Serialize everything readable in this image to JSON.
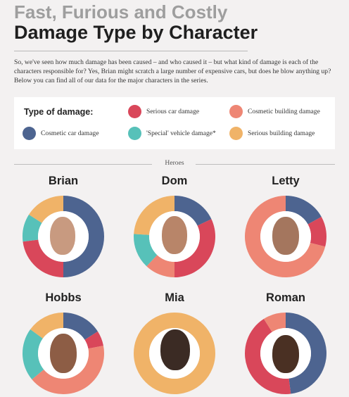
{
  "header": {
    "title_line1": "Fast, Furious and Costly",
    "title_line2": "Damage Type by Character"
  },
  "intro": "So, we've seen how much damage has been caused – and who caused it – but what kind of damage is each of the characters responsible for? Yes, Brian might scratch a large number of expensive cars, but does he blow anything up? Below you can find all of our data for the major characters in the series.",
  "legend": {
    "heading": "Type of damage:",
    "items": [
      {
        "label": "Serious car damage",
        "color": "#d9475a"
      },
      {
        "label": "Cosmetic building damage",
        "color": "#ee8674"
      },
      {
        "label": "Cosmetic car damage",
        "color": "#4d6490"
      },
      {
        "label": "'Special' vehicle damage*",
        "color": "#57c1b9"
      },
      {
        "label": "Serious building damage",
        "color": "#f0b368"
      }
    ]
  },
  "section_label": "Heroes",
  "chart_data": {
    "type": "pie",
    "variant": "donut",
    "series_order": [
      "Cosmetic car damage",
      "Serious car damage",
      "Cosmetic building damage",
      "'Special' vehicle damage*",
      "Serious building damage"
    ],
    "colors": [
      "#4d6490",
      "#d9475a",
      "#ee8674",
      "#57c1b9",
      "#f0b368"
    ],
    "units": "share of damage (%)",
    "charts": [
      {
        "name": "Brian",
        "values": [
          50,
          23,
          0,
          11,
          16
        ]
      },
      {
        "name": "Dom",
        "values": [
          18,
          32,
          12,
          14,
          24
        ]
      },
      {
        "name": "Letty",
        "values": [
          17,
          12,
          71,
          0,
          0
        ]
      },
      {
        "name": "Hobbs",
        "values": [
          16,
          6,
          42,
          21,
          15
        ]
      },
      {
        "name": "Mia",
        "values": [
          0,
          0,
          0,
          0,
          100
        ]
      },
      {
        "name": "Roman",
        "values": [
          48,
          43,
          9,
          0,
          0
        ]
      }
    ]
  }
}
